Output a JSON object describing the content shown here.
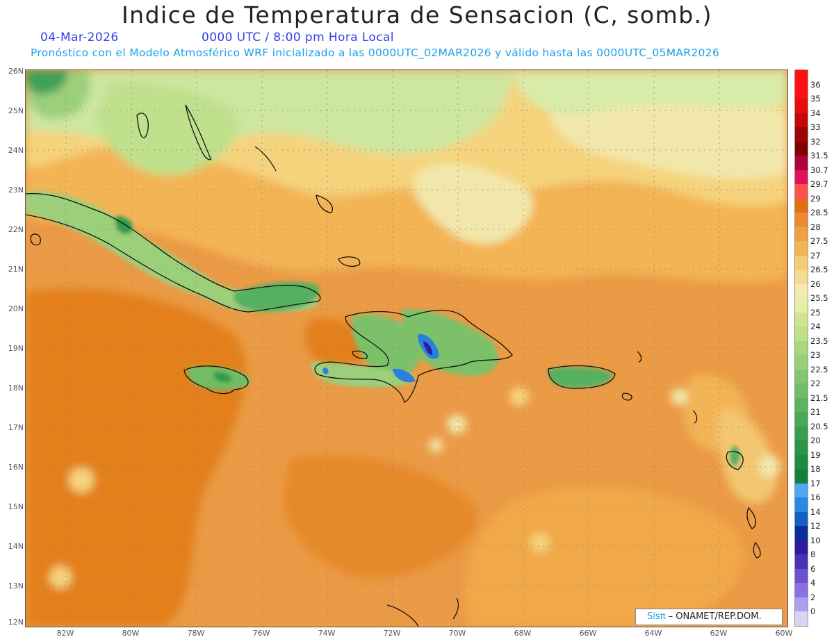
{
  "header": {
    "title": "Indice de Temperatura de Sensacion (C, somb.)",
    "date": "04-Mar-2026",
    "time": "0000 UTC / 8:00 pm Hora Local",
    "model_info": "Pronóstico con el Modelo Atmosférico WRF inicializado a las 0000UTC_02MAR2026 y válido hasta las  0000UTC_05MAR2026"
  },
  "axes": {
    "lat_labels": [
      "26N",
      "25N",
      "24N",
      "23N",
      "22N",
      "21N",
      "20N",
      "19N",
      "18N",
      "17N",
      "16N",
      "15N",
      "14N",
      "13N",
      "12N"
    ],
    "lon_labels": [
      "82W",
      "80W",
      "78W",
      "76W",
      "74W",
      "72W",
      "70W",
      "68W",
      "66W",
      "64W",
      "62W",
      "60W"
    ],
    "lat_range": [
      12,
      26
    ],
    "lon_range": [
      -83.2,
      -60
    ]
  },
  "legend": {
    "levels": [
      "36",
      "35",
      "34",
      "33",
      "32",
      "31.5",
      "30.7",
      "29.7",
      "29",
      "28.5",
      "28",
      "27.5",
      "27",
      "26.5",
      "26",
      "25.5",
      "25",
      "24",
      "23.5",
      "23",
      "22.5",
      "22",
      "21.5",
      "21",
      "20.5",
      "20",
      "19",
      "18",
      "17",
      "16",
      "14",
      "12",
      "10",
      "8",
      "6",
      "4",
      "2",
      "0"
    ],
    "colors": [
      "#ff1010",
      "#e80c0c",
      "#c80808",
      "#a00404",
      "#800000",
      "#b0003c",
      "#e0105a",
      "#ff5050",
      "#e37010",
      "#eb8a30",
      "#f0a044",
      "#f3b455",
      "#f5cc70",
      "#f4dc8e",
      "#f2eab0",
      "#e4eea8",
      "#cfe690",
      "#bee184",
      "#a8d87e",
      "#98d078",
      "#82c66e",
      "#6fbd66",
      "#5cb35e",
      "#4aa956",
      "#389f4e",
      "#2a9546",
      "#1e8b3e",
      "#128036",
      "#4aa8f0",
      "#2a88e0",
      "#1060c8",
      "#0a2c9a",
      "#2a1ca0",
      "#4a32b8",
      "#6a50d0",
      "#8a70e0",
      "#aaa0f0",
      "#d8d4f8"
    ]
  },
  "map_colors": {
    "ocean_base": "#eb9a45",
    "warm_dark": "#e3801e",
    "warm_light": "#f3b455",
    "yellow": "#f5d37c",
    "cream": "#f2e7aa",
    "pale_green": "#c8e38e",
    "green": "#9ccf7a",
    "dark_green": "#2e9a4c",
    "blue": "#2a7fe0",
    "coast": "#111111"
  },
  "credit": {
    "brand": "Sisπ",
    "text": " –  ONAMET/REP.DOM."
  }
}
